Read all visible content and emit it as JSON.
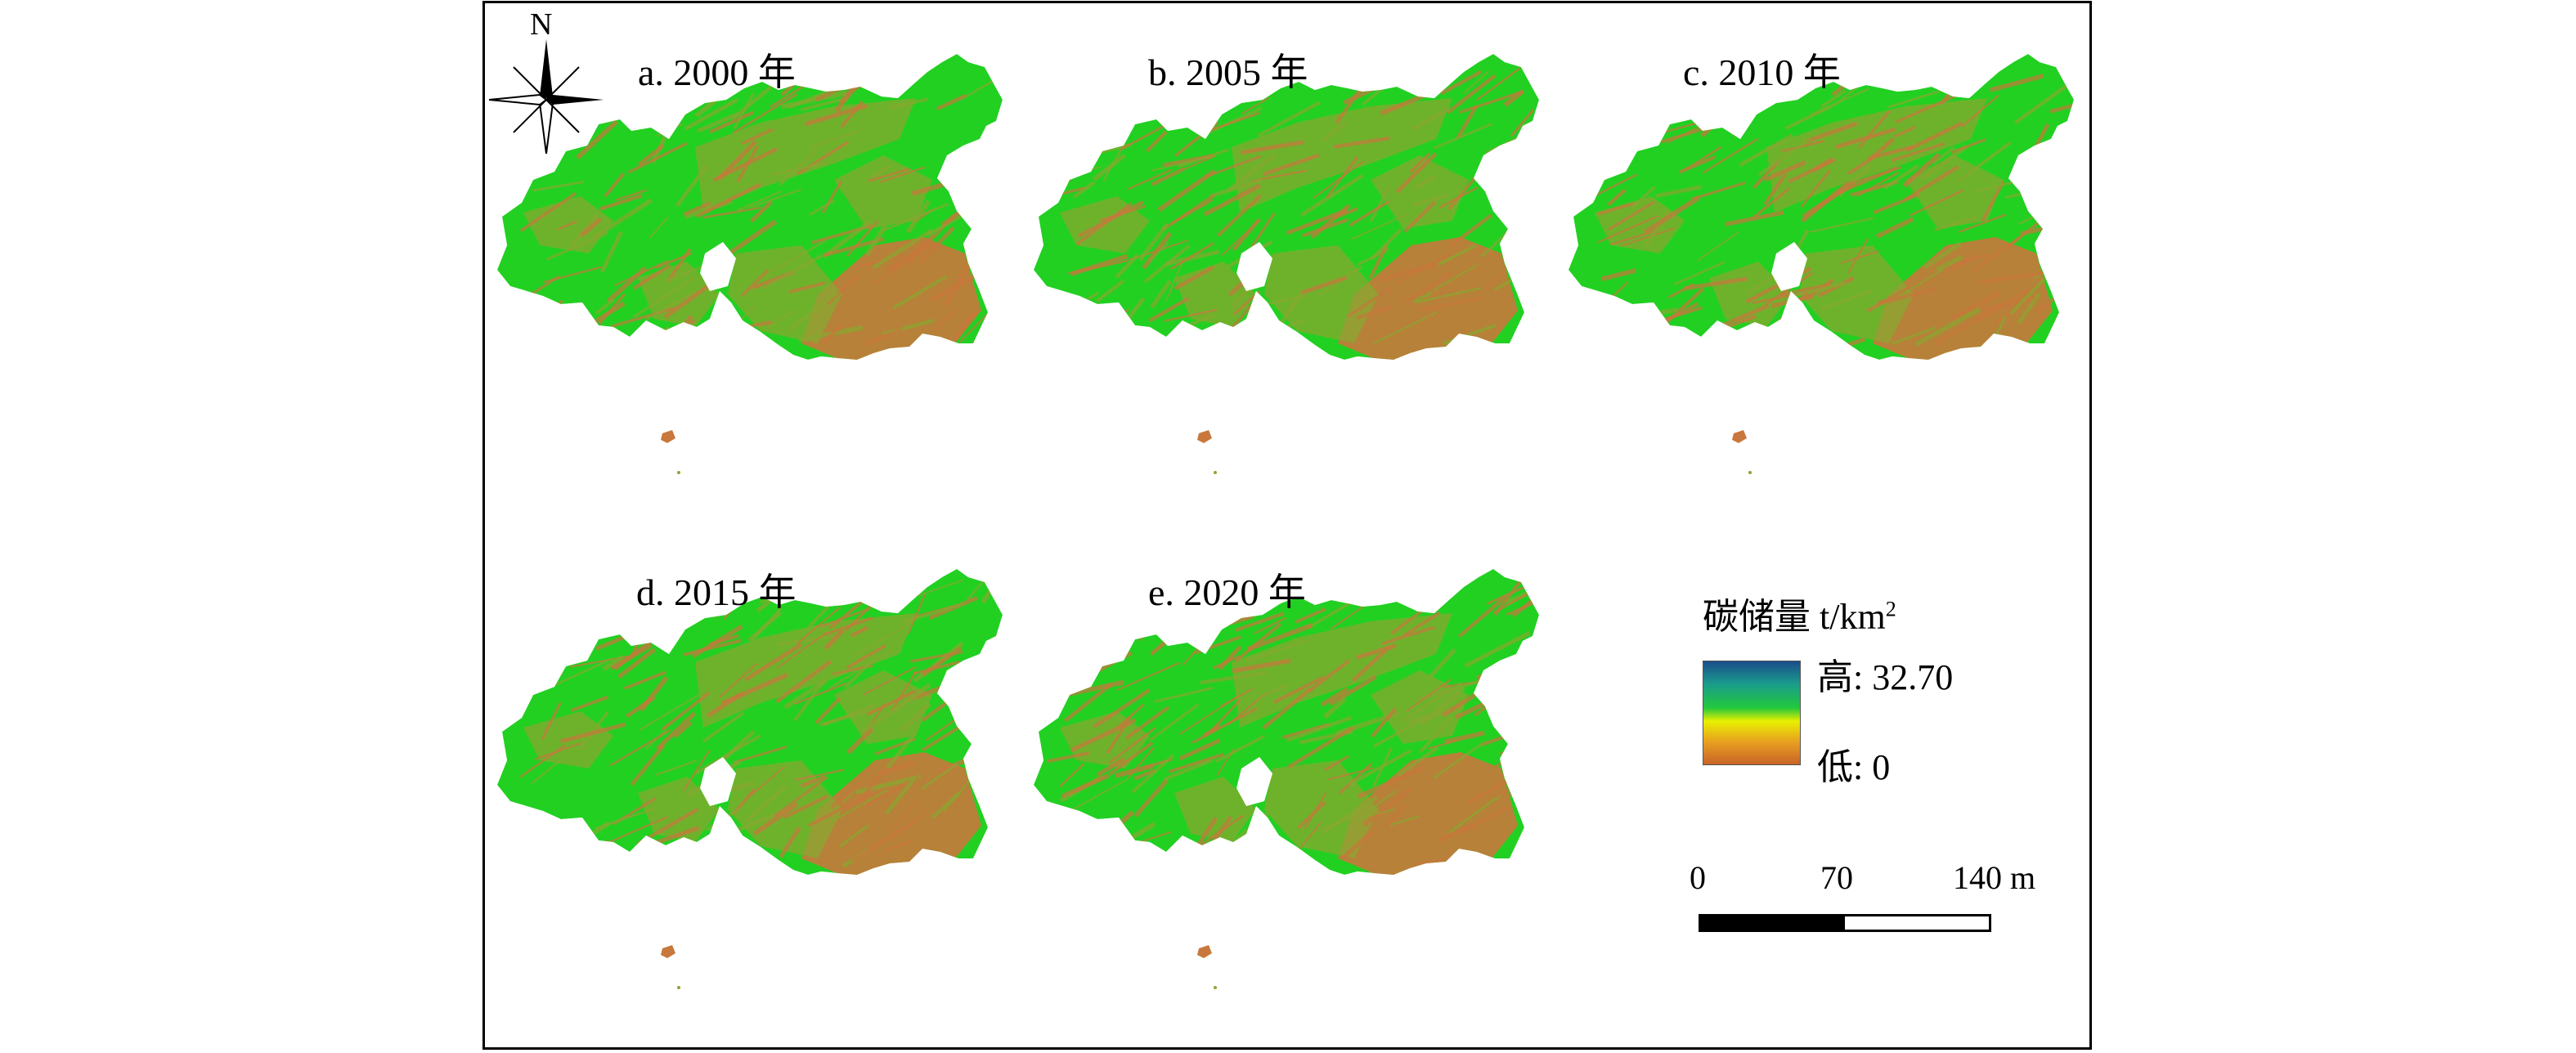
{
  "panels": [
    {
      "label": "a. 2000 年",
      "variant": 0
    },
    {
      "label": "b. 2005 年",
      "variant": 1
    },
    {
      "label": "c. 2010 年",
      "variant": 2
    },
    {
      "label": "d. 2015 年",
      "variant": 3
    },
    {
      "label": "e. 2020 年",
      "variant": 4
    }
  ],
  "north_arrow": {
    "label": "N"
  },
  "legend": {
    "title": "碳储量 t/km",
    "title_superscript": "2",
    "high_label": "高: 32.70",
    "low_label": "低: 0",
    "high_value": 32.7,
    "low_value": 0,
    "colors": [
      "#1a4d8c",
      "#1a9c8c",
      "#22c83c",
      "#e8f000",
      "#e8a020",
      "#c86428"
    ]
  },
  "scale_bar": {
    "ticks": [
      "0",
      "70",
      "140 m"
    ]
  },
  "map_colors": {
    "vegetation": "#22d022",
    "low_carbon": "#c8783c",
    "mix": "#88a830"
  }
}
